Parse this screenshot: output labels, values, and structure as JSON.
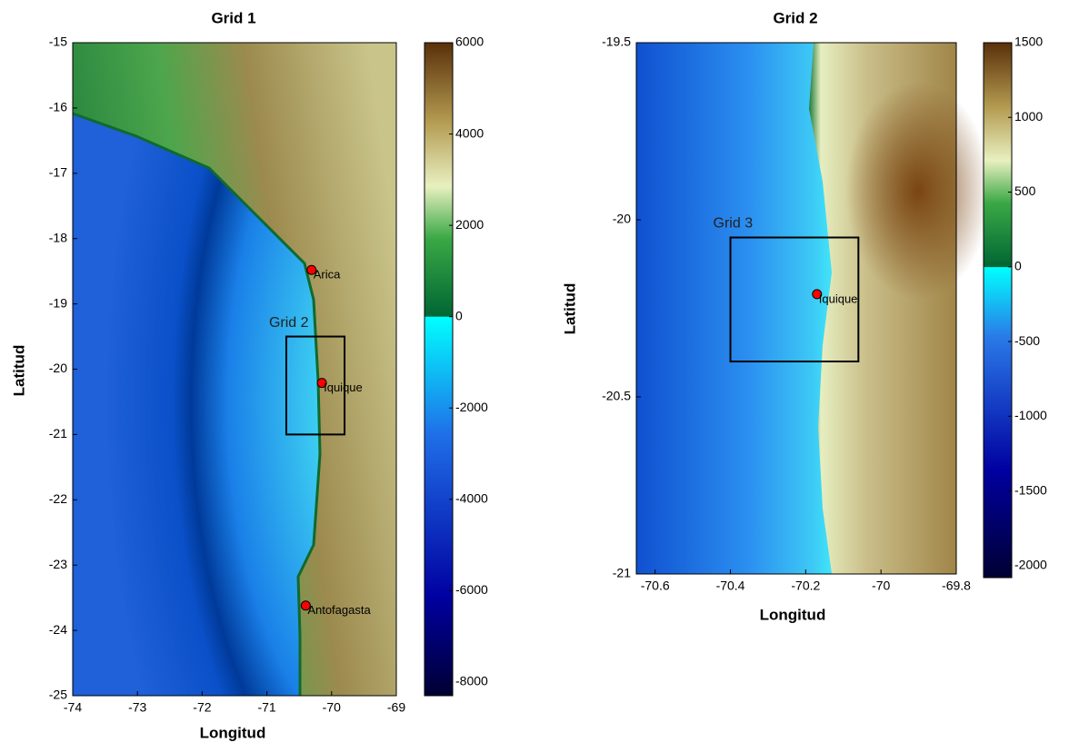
{
  "maps": [
    {
      "title": "Grid 1",
      "xlabel": "Longitud",
      "ylabel": "Latitud",
      "xlim": [
        -74,
        -69
      ],
      "xticks": [
        -74,
        -73,
        -72,
        -71,
        -70,
        -69
      ],
      "ylim": [
        -25,
        -15
      ],
      "yticks": [
        -25,
        -24,
        -23,
        -22,
        -21,
        -20,
        -19,
        -18,
        -17,
        -16,
        -15
      ],
      "colorbar": {
        "lim": [
          -8300,
          6000
        ],
        "ticks": [
          -8000,
          -6000,
          -4000,
          -2000,
          0,
          2000,
          4000,
          6000
        ]
      },
      "marker_color": "#ff0000",
      "cities": [
        {
          "name": "Arica",
          "lon": -70.31,
          "lat": -18.48
        },
        {
          "name": "Iquique",
          "lon": -70.15,
          "lat": -20.21
        },
        {
          "name": "Antofagasta",
          "lon": -70.4,
          "lat": -23.62
        }
      ],
      "boxes": [
        {
          "label": "Grid 2",
          "lon": [
            -70.7,
            -69.8
          ],
          "lat": [
            -21,
            -19.5
          ]
        }
      ]
    },
    {
      "title": "Grid 2",
      "xlabel": "Longitud",
      "ylabel": "Latitud",
      "xlim": [
        -70.65,
        -69.8
      ],
      "xticks": [
        -70.6,
        -70.4,
        -70.2,
        -70,
        -69.8
      ],
      "ylim": [
        -21,
        -19.5
      ],
      "yticks": [
        -21,
        -20.5,
        -20,
        -19.5
      ],
      "colorbar": {
        "lim": [
          -2080,
          1500
        ],
        "ticks": [
          -2000,
          -1500,
          -1000,
          -500,
          0,
          500,
          1000,
          1500
        ]
      },
      "marker_color": "#ff0000",
      "cities": [
        {
          "name": "Iquique",
          "lon": -70.17,
          "lat": -20.21
        }
      ],
      "boxes": [
        {
          "label": "Grid 3",
          "lon": [
            -70.4,
            -70.06
          ],
          "lat": [
            -20.4,
            -20.05
          ]
        }
      ]
    }
  ]
}
